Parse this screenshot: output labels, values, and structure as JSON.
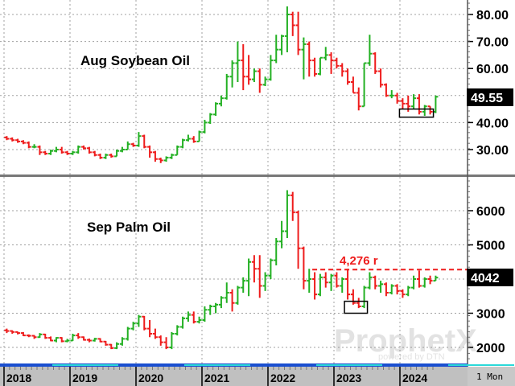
{
  "chart_data": [
    {
      "type": "ohlc",
      "title": "Aug Soybean Oil",
      "interval": "1 Mon",
      "yticks": [
        "80.00",
        "70.00",
        "60.00",
        "40.00",
        "30.00"
      ],
      "ytick_values": [
        80,
        70,
        60,
        40,
        30
      ],
      "ylim": [
        20,
        85
      ],
      "last_price": "49.55",
      "last_value": 49.55,
      "highlight_box": {
        "from": "2024-01",
        "to": "2024-06",
        "low": 42,
        "high": 45
      },
      "start": "2018-01",
      "bars": [
        [
          34.5,
          35,
          33.5,
          34
        ],
        [
          34,
          34.5,
          33,
          33.5
        ],
        [
          33.5,
          34,
          32.5,
          33
        ],
        [
          33,
          33.5,
          32,
          32.5
        ],
        [
          32.5,
          33,
          30.5,
          31
        ],
        [
          31,
          32,
          30.5,
          31
        ],
        [
          31,
          31.5,
          28,
          29
        ],
        [
          29,
          29.5,
          28,
          28.5
        ],
        [
          28.5,
          30,
          28,
          29.5
        ],
        [
          29.5,
          31,
          29,
          30
        ],
        [
          30,
          31,
          28.5,
          29
        ],
        [
          29,
          29.5,
          28,
          28.5
        ],
        [
          28.5,
          29.5,
          28,
          29
        ],
        [
          29,
          31.5,
          28.5,
          31
        ],
        [
          31,
          31.5,
          30,
          30.5
        ],
        [
          30.5,
          31,
          28.5,
          29
        ],
        [
          29,
          29.5,
          27.5,
          28
        ],
        [
          28,
          28.5,
          26.5,
          27
        ],
        [
          27,
          28.5,
          26.5,
          28
        ],
        [
          28,
          28.5,
          27,
          27.5
        ],
        [
          27.5,
          30,
          27.5,
          29.5
        ],
        [
          29.5,
          31,
          29,
          30
        ],
        [
          30,
          33,
          30,
          32
        ],
        [
          32,
          32.5,
          31,
          31.5
        ],
        [
          31.5,
          36.5,
          31,
          35
        ],
        [
          35,
          35.5,
          30.5,
          31
        ],
        [
          31,
          31.5,
          27,
          29
        ],
        [
          29,
          29.5,
          25.5,
          26.5
        ],
        [
          26.5,
          27,
          25,
          26
        ],
        [
          26,
          27.5,
          25.5,
          27
        ],
        [
          27,
          28.5,
          26.5,
          28
        ],
        [
          28,
          31.5,
          28,
          31
        ],
        [
          31,
          34,
          30.5,
          33.5
        ],
        [
          33.5,
          35.5,
          33,
          34
        ],
        [
          34,
          35,
          32.5,
          33
        ],
        [
          33,
          37,
          33,
          36.5
        ],
        [
          36.5,
          41,
          36,
          40
        ],
        [
          40,
          43.5,
          39.5,
          43
        ],
        [
          43,
          47.5,
          42.5,
          47
        ],
        [
          47,
          50,
          46,
          49
        ],
        [
          49,
          58,
          48.5,
          57
        ],
        [
          57,
          63,
          53,
          62
        ],
        [
          62,
          70,
          55,
          63
        ],
        [
          63,
          69,
          52,
          57
        ],
        [
          57,
          65,
          54,
          56
        ],
        [
          56,
          60,
          55,
          59
        ],
        [
          59,
          60,
          51,
          54
        ],
        [
          54,
          57,
          53.5,
          56
        ],
        [
          56,
          65,
          55.5,
          63
        ],
        [
          63,
          72.5,
          62,
          67
        ],
        [
          67,
          72.5,
          65,
          72
        ],
        [
          72,
          83,
          66,
          80
        ],
        [
          80,
          81,
          72,
          76
        ],
        [
          76,
          81,
          65,
          67
        ],
        [
          67,
          71.5,
          56,
          69
        ],
        [
          69,
          70,
          57,
          63
        ],
        [
          63,
          64,
          57,
          58
        ],
        [
          58,
          64,
          57.5,
          64
        ],
        [
          64,
          68,
          63,
          65
        ],
        [
          65,
          66,
          58,
          63
        ],
        [
          63,
          64,
          60,
          61
        ],
        [
          61,
          62,
          57,
          59
        ],
        [
          59,
          60,
          54,
          55
        ],
        [
          55,
          57,
          51,
          51
        ],
        [
          51,
          53,
          44.5,
          46
        ],
        [
          46,
          62,
          46,
          62
        ],
        [
          62,
          72.5,
          61,
          65.5
        ],
        [
          65.5,
          66,
          58,
          59
        ],
        [
          59,
          60,
          53,
          54
        ],
        [
          54,
          54.5,
          49.5,
          50
        ],
        [
          50,
          52,
          49,
          50
        ],
        [
          50,
          51,
          47,
          48
        ],
        [
          48,
          49,
          45,
          47
        ],
        [
          47,
          50,
          44,
          46
        ],
        [
          46,
          50.5,
          45,
          49
        ],
        [
          49,
          50.5,
          43,
          44
        ],
        [
          44,
          46.5,
          42.5,
          46
        ],
        [
          46,
          46,
          43,
          44
        ],
        [
          44,
          50,
          43.5,
          49.55
        ]
      ]
    },
    {
      "type": "ohlc",
      "title": "Sep Palm Oil",
      "interval": "1 Mon",
      "yticks": [
        "6000",
        "5000",
        "3000",
        "2000"
      ],
      "ytick_values": [
        6000,
        5000,
        3000,
        2000
      ],
      "ylim": [
        1500,
        6800
      ],
      "last_price": "4042",
      "last_value": 4042,
      "reference_line": {
        "value": 4276,
        "label": "4,276 r",
        "from": "2022-09"
      },
      "highlight_box": {
        "from": "2023-03",
        "to": "2023-06",
        "low": 3000,
        "high": 3350
      },
      "start": "2018-01",
      "bars": [
        [
          2500,
          2550,
          2420,
          2480
        ],
        [
          2480,
          2500,
          2400,
          2450
        ],
        [
          2450,
          2460,
          2380,
          2420
        ],
        [
          2420,
          2450,
          2330,
          2350
        ],
        [
          2350,
          2380,
          2300,
          2340
        ],
        [
          2340,
          2360,
          2250,
          2300
        ],
        [
          2300,
          2420,
          2280,
          2380
        ],
        [
          2380,
          2400,
          2250,
          2280
        ],
        [
          2280,
          2320,
          2180,
          2200
        ],
        [
          2200,
          2300,
          2150,
          2280
        ],
        [
          2280,
          2300,
          2150,
          2180
        ],
        [
          2180,
          2250,
          2150,
          2200
        ],
        [
          2200,
          2400,
          2190,
          2350
        ],
        [
          2350,
          2420,
          2250,
          2300
        ],
        [
          2300,
          2320,
          2200,
          2220
        ],
        [
          2220,
          2260,
          2150,
          2200
        ],
        [
          2200,
          2280,
          2170,
          2250
        ],
        [
          2250,
          2270,
          2150,
          2170
        ],
        [
          2170,
          2190,
          2050,
          2080
        ],
        [
          2080,
          2100,
          1950,
          1980
        ],
        [
          1980,
          2150,
          1950,
          2100
        ],
        [
          2100,
          2300,
          2050,
          2250
        ],
        [
          2250,
          2600,
          2200,
          2550
        ],
        [
          2550,
          2750,
          2500,
          2700
        ],
        [
          2700,
          2950,
          2600,
          2900
        ],
        [
          2900,
          2920,
          2500,
          2550
        ],
        [
          2550,
          2800,
          2300,
          2400
        ],
        [
          2400,
          2550,
          2250,
          2300
        ],
        [
          2300,
          2350,
          2050,
          2150
        ],
        [
          2150,
          2300,
          1950,
          2000
        ],
        [
          2000,
          2450,
          1950,
          2400
        ],
        [
          2400,
          2650,
          2350,
          2600
        ],
        [
          2600,
          2900,
          2550,
          2850
        ],
        [
          2850,
          3050,
          2750,
          2950
        ],
        [
          2950,
          3050,
          2700,
          2750
        ],
        [
          2750,
          2900,
          2700,
          2800
        ],
        [
          2800,
          3200,
          2750,
          3100
        ],
        [
          3100,
          3250,
          2950,
          3200
        ],
        [
          3200,
          3300,
          3000,
          3250
        ],
        [
          3250,
          3500,
          3150,
          3450
        ],
        [
          3450,
          3900,
          3300,
          3600
        ],
        [
          3600,
          3700,
          3050,
          3300
        ],
        [
          3300,
          3800,
          3250,
          3750
        ],
        [
          3750,
          4050,
          3600,
          3950
        ],
        [
          3950,
          4600,
          3500,
          4500
        ],
        [
          4500,
          4700,
          3900,
          4300
        ],
        [
          4300,
          4700,
          3450,
          3800
        ],
        [
          3800,
          4200,
          3650,
          4100
        ],
        [
          4100,
          4600,
          4000,
          4550
        ],
        [
          4550,
          5200,
          4400,
          5100
        ],
        [
          5100,
          5700,
          4900,
          5400
        ],
        [
          5400,
          6600,
          5200,
          6450
        ],
        [
          6450,
          6550,
          5700,
          5950
        ],
        [
          5950,
          6000,
          4300,
          4900
        ],
        [
          4900,
          4950,
          3700,
          3950
        ],
        [
          3950,
          4300,
          3600,
          4000
        ],
        [
          4000,
          4200,
          3400,
          3550
        ],
        [
          3550,
          4150,
          3500,
          4050
        ],
        [
          4050,
          4200,
          3750,
          3900
        ],
        [
          3900,
          4150,
          3650,
          4100
        ],
        [
          4100,
          4200,
          3750,
          3800
        ],
        [
          3800,
          4050,
          3600,
          4000
        ],
        [
          4000,
          4300,
          3400,
          3550
        ],
        [
          3550,
          3700,
          3250,
          3300
        ],
        [
          3300,
          3450,
          3150,
          3200
        ],
        [
          3200,
          3800,
          3150,
          3750
        ],
        [
          3750,
          4200,
          3700,
          4050
        ],
        [
          4050,
          4100,
          3700,
          3800
        ],
        [
          3800,
          3950,
          3600,
          3850
        ],
        [
          3850,
          3900,
          3500,
          3600
        ],
        [
          3600,
          3850,
          3550,
          3800
        ],
        [
          3800,
          3850,
          3550,
          3650
        ],
        [
          3650,
          3700,
          3450,
          3550
        ],
        [
          3550,
          3800,
          3500,
          3750
        ],
        [
          3750,
          4100,
          3700,
          4000
        ],
        [
          4000,
          4250,
          3750,
          3800
        ],
        [
          3800,
          4050,
          3750,
          4000
        ],
        [
          4000,
          4100,
          3850,
          3950
        ],
        [
          3950,
          4100,
          3950,
          4042
        ]
      ]
    }
  ],
  "x_axis": {
    "years": [
      "2018",
      "2019",
      "2020",
      "2021",
      "2022",
      "2023",
      "2024"
    ],
    "interval_label": "1 Mon"
  },
  "colors": {
    "up": "#22b022",
    "down": "#ee1c1c",
    "reference": "#ee1c1c",
    "grid": "#a0a0a0",
    "axis_strip": "#c0c0c0"
  },
  "watermark": {
    "brand": "ProphetX",
    "tagline": "powered by DTN"
  }
}
